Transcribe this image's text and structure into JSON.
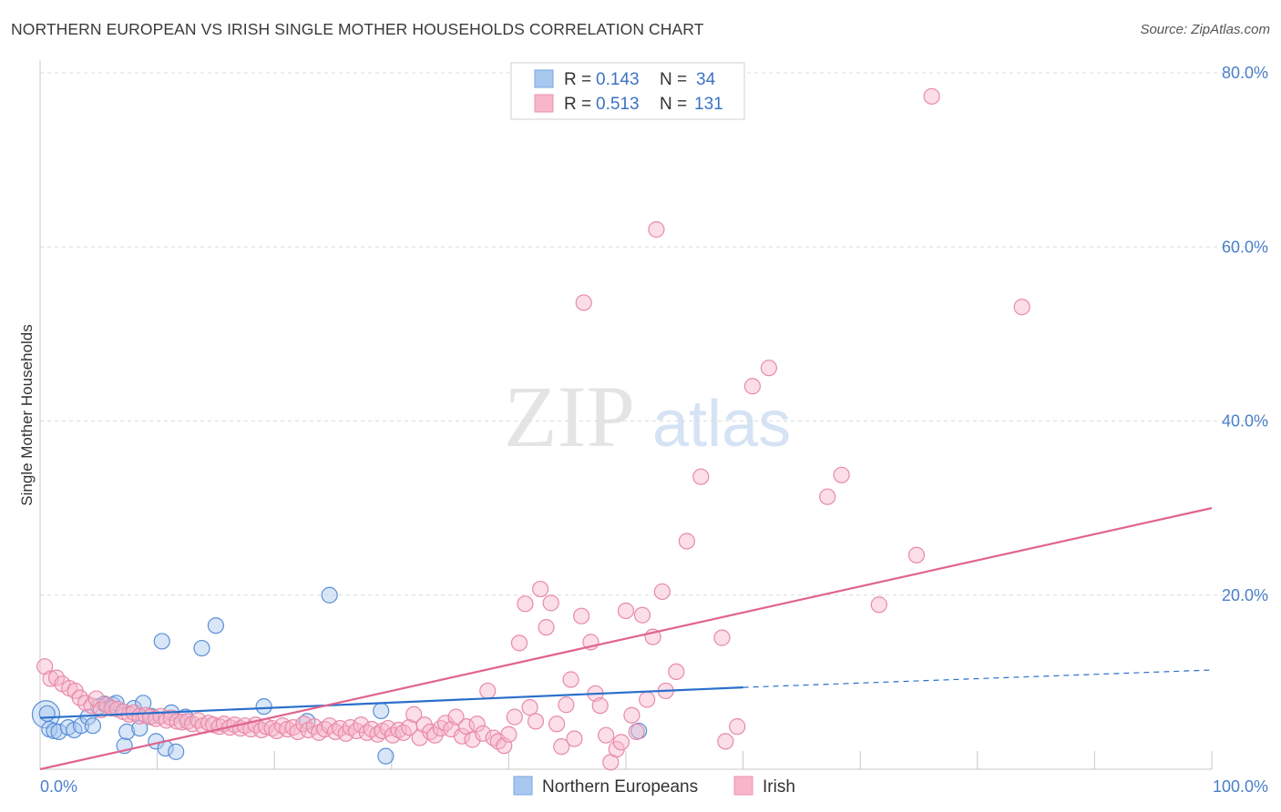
{
  "title": "NORTHERN EUROPEAN VS IRISH SINGLE MOTHER HOUSEHOLDS CORRELATION CHART",
  "source": "Source: ZipAtlas.com",
  "watermark": {
    "zip": "ZIP",
    "atlas": "atlas"
  },
  "legend": {
    "rows": [
      {
        "r_label": "R = ",
        "r_value": "0.143",
        "n_label": "N = ",
        "n_value": "34",
        "color": "#a8c8f0"
      },
      {
        "r_label": "R = ",
        "r_value": "0.513",
        "n_label": "N = ",
        "n_value": "131",
        "color": "#f7b6c9"
      }
    ]
  },
  "bottom_legend": [
    {
      "label": "Northern Europeans",
      "color": "#a8c8f0"
    },
    {
      "label": "Irish",
      "color": "#f7b6c9"
    }
  ],
  "chart_data": {
    "type": "scatter",
    "xlabel": "",
    "ylabel": "Single Mother Households",
    "xlim": [
      0,
      100
    ],
    "ylim": [
      0,
      80
    ],
    "x_tick_labels": [
      {
        "value": 0,
        "label": "0.0%"
      },
      {
        "value": 100,
        "label": "100.0%"
      }
    ],
    "y_tick_labels": [
      {
        "value": 20,
        "label": "20.0%"
      },
      {
        "value": 40,
        "label": "40.0%"
      },
      {
        "value": 60,
        "label": "60.0%"
      },
      {
        "value": 80,
        "label": "80.0%"
      }
    ],
    "grid": true,
    "series": [
      {
        "name": "Northern Europeans",
        "color": "#a8c8f0",
        "stroke": "#5b8fd6",
        "line_color": "#2a6fcb",
        "trend": {
          "x0": 0,
          "y0": 5.9,
          "x1": 60,
          "y1": 9.4,
          "dash_to_x": 100,
          "dash_to_y": 11.4
        },
        "points": [
          [
            0.5,
            6.3
          ],
          [
            0.8,
            4.6
          ],
          [
            1.2,
            4.4
          ],
          [
            1.6,
            4.3
          ],
          [
            2.4,
            4.8
          ],
          [
            2.9,
            4.5
          ],
          [
            3.5,
            5.0
          ],
          [
            4.1,
            6.0
          ],
          [
            4.5,
            5.0
          ],
          [
            5.0,
            7.2
          ],
          [
            5.5,
            7.5
          ],
          [
            6.2,
            7.4
          ],
          [
            6.5,
            7.6
          ],
          [
            7.2,
            2.7
          ],
          [
            7.4,
            4.3
          ],
          [
            8.0,
            7.0
          ],
          [
            8.5,
            4.7
          ],
          [
            8.8,
            7.6
          ],
          [
            9.5,
            6.1
          ],
          [
            9.9,
            3.2
          ],
          [
            10.4,
            14.7
          ],
          [
            10.7,
            2.4
          ],
          [
            11.2,
            6.5
          ],
          [
            11.6,
            2.0
          ],
          [
            12.4,
            6.0
          ],
          [
            13.8,
            13.9
          ],
          [
            15.0,
            16.5
          ],
          [
            19.1,
            7.2
          ],
          [
            22.8,
            5.5
          ],
          [
            24.7,
            20.0
          ],
          [
            29.1,
            6.7
          ],
          [
            29.5,
            1.5
          ],
          [
            51.1,
            4.4
          ],
          [
            0.6,
            6.4
          ]
        ]
      },
      {
        "name": "Irish",
        "color": "#f7b6c9",
        "stroke": "#e88aa8",
        "line_color": "#e0648e",
        "trend": {
          "x0": 0,
          "y0": 0.0,
          "x1": 100,
          "y1": 30.0
        },
        "points": [
          [
            0.4,
            11.8
          ],
          [
            0.9,
            10.4
          ],
          [
            1.4,
            10.5
          ],
          [
            1.9,
            9.8
          ],
          [
            2.5,
            9.3
          ],
          [
            3.0,
            9.0
          ],
          [
            3.4,
            8.2
          ],
          [
            3.9,
            7.6
          ],
          [
            4.4,
            7.3
          ],
          [
            4.8,
            8.1
          ],
          [
            5.2,
            6.8
          ],
          [
            5.7,
            7.4
          ],
          [
            6.1,
            7.0
          ],
          [
            6.6,
            6.9
          ],
          [
            7.1,
            6.6
          ],
          [
            7.6,
            6.3
          ],
          [
            8.0,
            6.5
          ],
          [
            8.5,
            6.1
          ],
          [
            9.0,
            6.2
          ],
          [
            9.4,
            6.0
          ],
          [
            9.9,
            5.8
          ],
          [
            10.3,
            6.1
          ],
          [
            10.8,
            5.6
          ],
          [
            11.2,
            5.9
          ],
          [
            11.7,
            5.5
          ],
          [
            12.1,
            5.4
          ],
          [
            12.6,
            5.5
          ],
          [
            13.0,
            5.2
          ],
          [
            13.5,
            5.6
          ],
          [
            13.9,
            5.0
          ],
          [
            14.4,
            5.3
          ],
          [
            14.8,
            5.1
          ],
          [
            15.3,
            4.9
          ],
          [
            15.7,
            5.2
          ],
          [
            16.2,
            4.8
          ],
          [
            16.6,
            5.1
          ],
          [
            17.1,
            4.7
          ],
          [
            17.5,
            5.0
          ],
          [
            18.0,
            4.6
          ],
          [
            18.4,
            5.1
          ],
          [
            18.9,
            4.5
          ],
          [
            19.3,
            4.9
          ],
          [
            19.8,
            4.7
          ],
          [
            20.2,
            4.4
          ],
          [
            20.7,
            5.0
          ],
          [
            21.1,
            4.6
          ],
          [
            21.6,
            4.8
          ],
          [
            22.0,
            4.3
          ],
          [
            22.5,
            5.2
          ],
          [
            22.9,
            4.5
          ],
          [
            23.4,
            4.9
          ],
          [
            23.8,
            4.2
          ],
          [
            24.3,
            4.6
          ],
          [
            24.7,
            5.0
          ],
          [
            25.2,
            4.3
          ],
          [
            25.6,
            4.7
          ],
          [
            26.1,
            4.1
          ],
          [
            26.5,
            4.8
          ],
          [
            27.0,
            4.4
          ],
          [
            27.4,
            5.1
          ],
          [
            27.9,
            4.2
          ],
          [
            28.3,
            4.6
          ],
          [
            28.8,
            4.0
          ],
          [
            29.2,
            4.4
          ],
          [
            29.7,
            4.7
          ],
          [
            30.1,
            3.9
          ],
          [
            30.6,
            4.5
          ],
          [
            31.0,
            4.2
          ],
          [
            31.5,
            4.8
          ],
          [
            31.9,
            6.3
          ],
          [
            32.4,
            3.6
          ],
          [
            32.8,
            5.1
          ],
          [
            33.3,
            4.3
          ],
          [
            33.7,
            3.9
          ],
          [
            34.2,
            4.7
          ],
          [
            34.6,
            5.3
          ],
          [
            35.1,
            4.6
          ],
          [
            35.5,
            6.0
          ],
          [
            36.0,
            3.8
          ],
          [
            36.4,
            4.9
          ],
          [
            36.9,
            3.4
          ],
          [
            37.3,
            5.2
          ],
          [
            37.8,
            4.1
          ],
          [
            38.2,
            9.0
          ],
          [
            38.7,
            3.6
          ],
          [
            39.1,
            3.2
          ],
          [
            39.6,
            2.7
          ],
          [
            40.0,
            4.0
          ],
          [
            40.5,
            6.0
          ],
          [
            40.9,
            14.5
          ],
          [
            41.4,
            19.0
          ],
          [
            41.8,
            7.1
          ],
          [
            42.3,
            5.5
          ],
          [
            42.7,
            20.7
          ],
          [
            43.2,
            16.3
          ],
          [
            43.6,
            19.1
          ],
          [
            44.1,
            5.2
          ],
          [
            44.5,
            2.6
          ],
          [
            44.9,
            7.4
          ],
          [
            45.3,
            10.3
          ],
          [
            45.6,
            3.5
          ],
          [
            46.2,
            17.6
          ],
          [
            46.4,
            53.6
          ],
          [
            47.0,
            14.6
          ],
          [
            47.4,
            8.7
          ],
          [
            47.8,
            7.3
          ],
          [
            48.3,
            3.9
          ],
          [
            48.7,
            0.8
          ],
          [
            49.2,
            2.3
          ],
          [
            49.6,
            3.1
          ],
          [
            50.0,
            18.2
          ],
          [
            50.5,
            6.2
          ],
          [
            50.9,
            4.3
          ],
          [
            51.4,
            17.7
          ],
          [
            51.8,
            8.0
          ],
          [
            52.3,
            15.2
          ],
          [
            52.6,
            62.0
          ],
          [
            53.1,
            20.4
          ],
          [
            53.4,
            9.0
          ],
          [
            54.3,
            11.2
          ],
          [
            55.2,
            26.2
          ],
          [
            56.4,
            33.6
          ],
          [
            58.2,
            15.1
          ],
          [
            58.5,
            3.2
          ],
          [
            59.5,
            4.9
          ],
          [
            60.8,
            44.0
          ],
          [
            62.2,
            46.1
          ],
          [
            67.2,
            31.3
          ],
          [
            68.4,
            33.8
          ],
          [
            71.6,
            18.9
          ],
          [
            74.8,
            24.6
          ],
          [
            76.1,
            77.3
          ],
          [
            83.8,
            53.1
          ]
        ]
      }
    ]
  }
}
